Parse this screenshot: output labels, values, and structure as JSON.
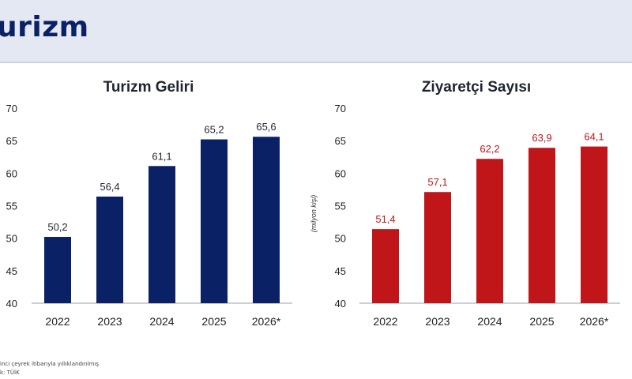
{
  "header": {
    "title": "urizm"
  },
  "colors": {
    "navy": "#0b2166",
    "red": "#c0161a",
    "header_bg": "#e3e8f2"
  },
  "chart_data": [
    {
      "type": "bar",
      "title": "Turizm Geliri",
      "categories": [
        "2022",
        "2023",
        "2024",
        "2025",
        "2026*"
      ],
      "values": [
        50.2,
        56.4,
        61.1,
        65.2,
        65.6
      ],
      "value_labels": [
        "50,2",
        "56,4",
        "61,1",
        "65,2",
        "65,6"
      ],
      "ylim": [
        40,
        70
      ],
      "yticks": [
        40,
        45,
        50,
        55,
        60,
        65,
        70
      ],
      "ylabel": "",
      "xlabel": "",
      "bar_color": "#0b2166",
      "label_color": "#1f2430",
      "grid": false
    },
    {
      "type": "bar",
      "title": "Ziyaretçi Sayısı",
      "categories": [
        "2022",
        "2023",
        "2024",
        "2025",
        "2026*"
      ],
      "values": [
        51.4,
        57.1,
        62.2,
        63.9,
        64.1
      ],
      "value_labels": [
        "51,4",
        "57,1",
        "62,2",
        "63,9",
        "64,1"
      ],
      "ylim": [
        40,
        70
      ],
      "yticks": [
        40,
        45,
        50,
        55,
        60,
        65,
        70
      ],
      "ylabel": "(milyon kişi)",
      "xlabel": "",
      "bar_color": "#c0161a",
      "label_color": "#c0161a",
      "grid": false
    }
  ],
  "footnotes": [
    "inci çeyrek itibarıyla yıllıklandırılmış",
    "k: TÜİK"
  ]
}
